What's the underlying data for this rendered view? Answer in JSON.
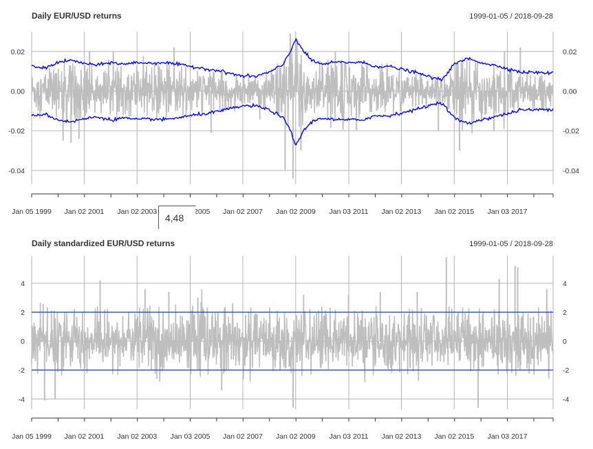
{
  "chart_data": [
    {
      "type": "line",
      "title": "Daily EUR/USD returns",
      "date_range": "1999-01-05 / 2018-09-28",
      "ylim": [
        -0.047,
        0.03
      ],
      "y_ticks": [
        0.02,
        0.0,
        -0.02,
        -0.04
      ],
      "y_tick_labels": [
        "0.02",
        "0.00",
        "-0.02",
        "-0.04"
      ],
      "x_tick_labels": [
        "Jan 05 1999",
        "Jan 02 2001",
        "Jan 02 2003",
        "Jan 03 2005",
        "Jan 02 2007",
        "Jan 02 2009",
        "Jan 03 2011",
        "Jan 02 2013",
        "Jan 02 2015",
        "Jan 03 2017"
      ],
      "x_tick_years": [
        1999.01,
        2001.0,
        2003.0,
        2005.01,
        2007.0,
        2009.0,
        2011.01,
        2013.0,
        2015.0,
        2017.01
      ],
      "x_start": 1999.01,
      "x_end": 2018.74,
      "grid": true,
      "series": [
        {
          "kind": "returns",
          "color": "#bebebe",
          "bands_x": [
            1999.01,
            1999.5,
            2000.0,
            2000.5,
            2001.0,
            2001.5,
            2002.0,
            2002.5,
            2003.0,
            2003.5,
            2004.0,
            2004.5,
            2005.0,
            2005.5,
            2006.0,
            2006.5,
            2007.0,
            2007.5,
            2008.0,
            2008.5,
            2008.8,
            2009.0,
            2009.3,
            2009.6,
            2010.0,
            2010.5,
            2011.0,
            2011.5,
            2012.0,
            2012.5,
            2013.0,
            2013.5,
            2014.0,
            2014.5,
            2015.0,
            2015.5,
            2016.0,
            2016.5,
            2017.0,
            2017.5,
            2018.0,
            2018.74
          ],
          "bands_amp": [
            0.009,
            0.01,
            0.011,
            0.011,
            0.01,
            0.009,
            0.01,
            0.009,
            0.01,
            0.01,
            0.01,
            0.01,
            0.009,
            0.009,
            0.008,
            0.007,
            0.006,
            0.006,
            0.008,
            0.011,
            0.019,
            0.025,
            0.017,
            0.012,
            0.011,
            0.012,
            0.012,
            0.012,
            0.01,
            0.01,
            0.009,
            0.008,
            0.006,
            0.005,
            0.011,
            0.013,
            0.011,
            0.01,
            0.009,
            0.008,
            0.007,
            0.007
          ],
          "spikes": [
            [
              2000.2,
              -0.025
            ],
            [
              2000.5,
              -0.026
            ],
            [
              2000.8,
              -0.024
            ],
            [
              2001.2,
              0.02
            ],
            [
              2002.1,
              0.02
            ],
            [
              2004.4,
              0.022
            ],
            [
              2005.8,
              -0.021
            ],
            [
              2008.6,
              -0.04
            ],
            [
              2008.8,
              0.029
            ],
            [
              2008.9,
              -0.044
            ],
            [
              2009.0,
              0.027
            ],
            [
              2009.2,
              -0.03
            ],
            [
              2010.5,
              0.02
            ],
            [
              2011.3,
              -0.02
            ],
            [
              2014.4,
              -0.02
            ],
            [
              2015.2,
              -0.03
            ],
            [
              2016.5,
              -0.02
            ],
            [
              2016.9,
              0.02
            ],
            [
              2017.5,
              0.022
            ]
          ]
        },
        {
          "kind": "volatility_band",
          "color": "#0000ff",
          "x": [
            1999.01,
            1999.5,
            2000.0,
            2000.5,
            2001.0,
            2001.5,
            2002.0,
            2002.5,
            2003.0,
            2003.5,
            2004.0,
            2004.5,
            2005.0,
            2005.5,
            2006.0,
            2006.5,
            2007.0,
            2007.5,
            2008.0,
            2008.5,
            2008.8,
            2009.0,
            2009.3,
            2009.6,
            2010.0,
            2010.5,
            2011.0,
            2011.5,
            2012.0,
            2012.5,
            2013.0,
            2013.5,
            2014.0,
            2014.5,
            2015.0,
            2015.5,
            2016.0,
            2016.5,
            2017.0,
            2017.5,
            2018.0,
            2018.74
          ],
          "upper": [
            0.0125,
            0.0115,
            0.0145,
            0.0155,
            0.014,
            0.013,
            0.0145,
            0.0135,
            0.0145,
            0.014,
            0.0145,
            0.0135,
            0.0125,
            0.0115,
            0.0105,
            0.009,
            0.0075,
            0.0075,
            0.0095,
            0.013,
            0.02,
            0.0265,
            0.02,
            0.0155,
            0.0135,
            0.0145,
            0.0145,
            0.0145,
            0.0125,
            0.0125,
            0.011,
            0.0095,
            0.0075,
            0.0055,
            0.0135,
            0.0165,
            0.0145,
            0.013,
            0.0115,
            0.0095,
            0.0095,
            0.009
          ],
          "lower": [
            -0.0125,
            -0.0115,
            -0.0145,
            -0.0155,
            -0.014,
            -0.013,
            -0.0145,
            -0.0135,
            -0.0145,
            -0.014,
            -0.0145,
            -0.0135,
            -0.0125,
            -0.0115,
            -0.0105,
            -0.009,
            -0.0075,
            -0.0075,
            -0.0095,
            -0.013,
            -0.02,
            -0.0275,
            -0.02,
            -0.0155,
            -0.0135,
            -0.0145,
            -0.0145,
            -0.0145,
            -0.0125,
            -0.0125,
            -0.011,
            -0.0095,
            -0.0075,
            -0.0055,
            -0.0135,
            -0.0165,
            -0.0145,
            -0.013,
            -0.0115,
            -0.0095,
            -0.0095,
            -0.009
          ]
        }
      ],
      "tooltip_value": "4,48"
    },
    {
      "type": "line",
      "title": "Daily standardized EUR/USD returns",
      "date_range": "1999-01-05 / 2018-09-28",
      "ylim": [
        -4.7,
        5.9
      ],
      "y_ticks": [
        4,
        2,
        0,
        -2,
        -4
      ],
      "y_tick_labels": [
        "4",
        "2",
        "0",
        "-2",
        "-4"
      ],
      "x_tick_labels": [
        "Jan 05 1999",
        "Jan 02 2001",
        "Jan 02 2003",
        "Jan 03 2005",
        "Jan 02 2007",
        "Jan 02 2009",
        "Jan 03 2011",
        "Jan 02 2013",
        "Jan 02 2015",
        "Jan 03 2017"
      ],
      "x_tick_years": [
        1999.01,
        2001.0,
        2003.0,
        2005.01,
        2007.0,
        2009.0,
        2011.01,
        2013.0,
        2015.0,
        2017.01
      ],
      "x_start": 1999.01,
      "x_end": 2018.74,
      "grid": true,
      "hlines": [
        2,
        -2
      ],
      "series": [
        {
          "kind": "standardized_returns",
          "color": "#bebebe",
          "amp": 1.7,
          "spikes": [
            [
              1999.5,
              -4.1
            ],
            [
              1999.9,
              -4.0
            ],
            [
              2001.6,
              4.2
            ],
            [
              2003.3,
              3.6
            ],
            [
              2004.2,
              3.4
            ],
            [
              2005.3,
              3.0
            ],
            [
              2006.2,
              -3.4
            ],
            [
              2008.9,
              -4.6
            ],
            [
              2009.3,
              3.2
            ],
            [
              2011.0,
              3.2
            ],
            [
              2012.2,
              3.4
            ],
            [
              2013.6,
              3.4
            ],
            [
              2014.7,
              5.8
            ],
            [
              2015.9,
              -4.6
            ],
            [
              2016.7,
              4.3
            ],
            [
              2017.3,
              5.2
            ],
            [
              2017.4,
              5.1
            ],
            [
              2018.5,
              3.6
            ]
          ]
        }
      ]
    }
  ]
}
